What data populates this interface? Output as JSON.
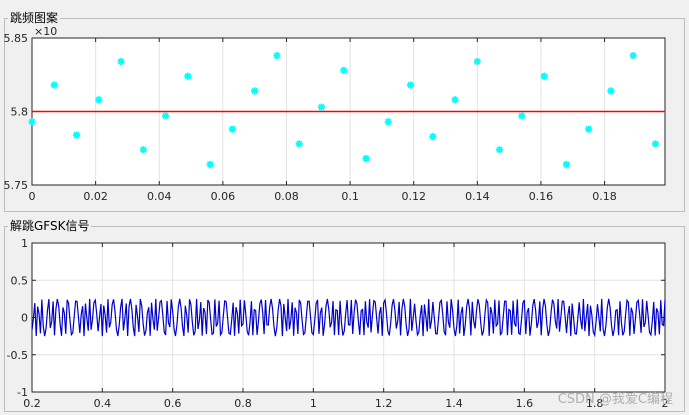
{
  "panels": {
    "top_title": "跳频图案",
    "bottom_title": "解跳GFSK信号"
  },
  "watermark": "CSDN @我爱C编程",
  "chart_data": [
    {
      "type": "scatter",
      "title": "",
      "marker": "*",
      "color": "#00ffff",
      "exponent_label": "×10",
      "x": [
        0.0,
        0.007,
        0.014,
        0.021,
        0.028,
        0.035,
        0.042,
        0.049,
        0.056,
        0.063,
        0.07,
        0.077,
        0.084,
        0.091,
        0.098,
        0.105,
        0.112,
        0.119,
        0.126,
        0.133,
        0.14,
        0.147,
        0.154,
        0.161,
        0.168,
        0.175,
        0.182,
        0.189,
        0.196
      ],
      "y": [
        5.793,
        5.818,
        5.784,
        5.808,
        5.834,
        5.774,
        5.797,
        5.824,
        5.764,
        5.788,
        5.814,
        5.838,
        5.778,
        5.803,
        5.828,
        5.768,
        5.793,
        5.818,
        5.783,
        5.808,
        5.834,
        5.774,
        5.797,
        5.824,
        5.764,
        5.788,
        5.814,
        5.838,
        5.778
      ],
      "reference_line": {
        "y": 5.8,
        "color": "#ff0000"
      },
      "xlim": [
        0,
        0.199
      ],
      "ylim": [
        5.75,
        5.85
      ],
      "xticks": [
        0,
        0.02,
        0.04,
        0.06,
        0.08,
        0.1,
        0.12,
        0.14,
        0.16,
        0.18
      ],
      "xtick_labels": [
        "0",
        "0.02",
        "0.04",
        "0.06",
        "0.08",
        "0.1",
        "0.12",
        "0.14",
        "0.16",
        "0.18"
      ],
      "yticks": [
        5.75,
        5.8,
        5.85
      ],
      "ytick_labels": [
        "5.75",
        "5.8",
        "5.85"
      ],
      "grid": true
    },
    {
      "type": "line",
      "title": "",
      "color": "#0000cc",
      "xlim": [
        0.2,
        2.0
      ],
      "ylim": [
        -1,
        1
      ],
      "xticks": [
        0.2,
        0.4,
        0.6,
        0.8,
        1.0,
        1.2,
        1.4,
        1.6,
        1.8,
        2.0
      ],
      "xtick_labels": [
        "0.2",
        "0.4",
        "0.6",
        "0.8",
        "1",
        "1.2",
        "1.4",
        "1.6",
        "1.8",
        "2"
      ],
      "yticks": [
        -1,
        -0.5,
        0,
        0.5,
        1
      ],
      "ytick_labels": [
        "-1",
        "-0.5",
        "0",
        "0.5",
        "1"
      ],
      "amplitude": 0.25,
      "sample_step": 0.004,
      "bits": [
        1,
        1,
        0,
        1,
        0,
        1,
        0,
        0,
        1,
        1,
        0,
        1,
        1,
        0,
        0,
        1,
        0,
        1,
        0,
        1,
        1,
        0,
        1,
        0,
        0,
        1,
        0,
        1,
        1,
        0,
        1,
        0,
        0,
        1,
        1,
        0,
        1,
        0,
        1,
        0,
        0,
        1,
        1,
        1,
        0,
        0,
        0,
        1,
        0,
        1,
        1,
        0,
        1,
        0,
        1,
        1,
        0,
        1,
        0,
        0,
        1,
        0,
        1,
        0,
        1,
        1,
        0,
        0,
        1,
        0,
        1,
        0,
        1,
        0,
        0,
        1,
        1,
        0,
        1,
        1,
        0,
        1,
        0,
        1,
        0,
        0,
        1,
        0,
        1,
        0,
        1,
        1,
        0,
        1,
        0,
        0,
        1,
        0,
        1,
        0,
        1,
        0,
        1,
        1
      ],
      "grid": true
    }
  ]
}
